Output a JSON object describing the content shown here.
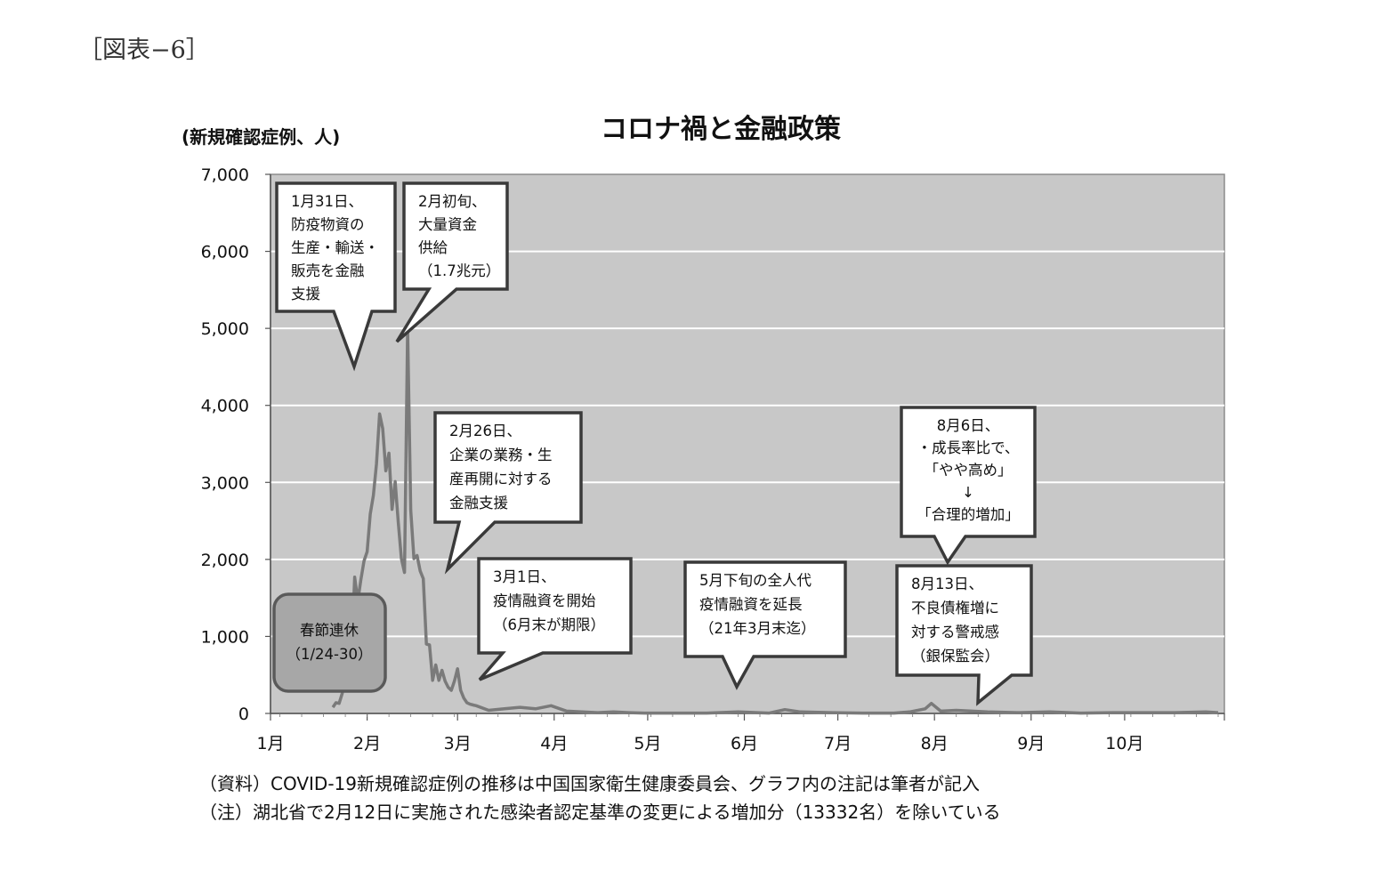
{
  "figure_label": "［図表−6］",
  "notes": [
    "（資料）COVID-19新規確認症例の推移は中国国家衛生健康委員会、グラフ内の注記は筆者が記入",
    "（注）湖北省で2月12日に実施された感染者認定基準の変更による増加分（13332名）を除いている"
  ],
  "chart_data": {
    "type": "line",
    "title": "コロナ禍と金融政策",
    "ylabel": "(新規確認症例、人)",
    "xlabel": "",
    "ylim": [
      0,
      7000
    ],
    "yticks": [
      "0",
      "1,000",
      "2,000",
      "3,000",
      "4,000",
      "5,000",
      "6,000",
      "7,000"
    ],
    "categories": [
      "1月",
      "2月",
      "3月",
      "4月",
      "5月",
      "6月",
      "7月",
      "8月",
      "9月",
      "10月"
    ],
    "x_range_days": [
      0,
      306
    ],
    "grid": true,
    "legend": "none",
    "line_color": "#7a7a7a",
    "plot_bg": "#c8c8c8",
    "series": [
      {
        "name": "",
        "x": [
          20,
          21,
          22,
          23,
          24,
          25,
          26,
          27,
          28,
          29,
          30,
          31,
          32,
          33,
          34,
          35,
          36,
          37,
          38,
          39,
          40,
          41,
          42,
          43,
          44,
          45,
          46,
          47,
          48,
          49,
          50,
          51,
          52,
          53,
          54,
          55,
          56,
          57,
          58,
          59,
          60,
          61,
          62,
          63,
          64,
          65,
          66,
          70,
          75,
          80,
          85,
          90,
          95,
          100,
          105,
          110,
          115,
          120,
          130,
          140,
          150,
          160,
          165,
          170,
          180,
          190,
          200,
          205,
          210,
          212,
          215,
          220,
          225,
          230,
          240,
          250,
          260,
          270,
          280,
          290,
          300,
          304
        ],
        "values": [
          80,
          140,
          130,
          260,
          450,
          690,
          780,
          1770,
          1460,
          1740,
          1980,
          2100,
          2590,
          2830,
          3240,
          3890,
          3700,
          3150,
          3380,
          2650,
          3010,
          2480,
          2010,
          1830,
          5000,
          2640,
          2010,
          2050,
          1850,
          1750,
          900,
          890,
          430,
          630,
          430,
          560,
          420,
          340,
          300,
          420,
          580,
          300,
          200,
          140,
          120,
          110,
          100,
          40,
          60,
          80,
          60,
          100,
          30,
          20,
          10,
          20,
          10,
          5,
          5,
          5,
          20,
          5,
          50,
          20,
          10,
          5,
          5,
          20,
          60,
          130,
          30,
          40,
          30,
          20,
          10,
          20,
          5,
          10,
          10,
          10,
          20,
          10
        ]
      }
    ],
    "callouts": [
      {
        "lines": [
          "1月31日、",
          "防疫物資の",
          "生産・輸送・",
          "販売を金融",
          "支援"
        ]
      },
      {
        "lines": [
          "2月初旬、",
          "大量資金",
          "供給",
          "（1.7兆元）"
        ]
      },
      {
        "lines": [
          "2月26日、",
          "企業の業務・生",
          "産再開に対する",
          "金融支援"
        ]
      },
      {
        "lines": [
          "3月1日、",
          "疫情融資を開始",
          "（6月末が期限）"
        ]
      },
      {
        "lines": [
          "5月下旬の全人代",
          "疫情融資を延長",
          "（21年3月末迄）"
        ]
      },
      {
        "lines": [
          "8月6日、",
          "・成長率比で、",
          "「やや高め」",
          "↓",
          "「合理的増加」"
        ]
      },
      {
        "lines": [
          "8月13日、",
          "不良債権増に",
          "対する警戒感",
          "（銀保監会）"
        ]
      },
      {
        "lines": [
          "春節連休",
          "（1/24-30）"
        ]
      }
    ]
  }
}
